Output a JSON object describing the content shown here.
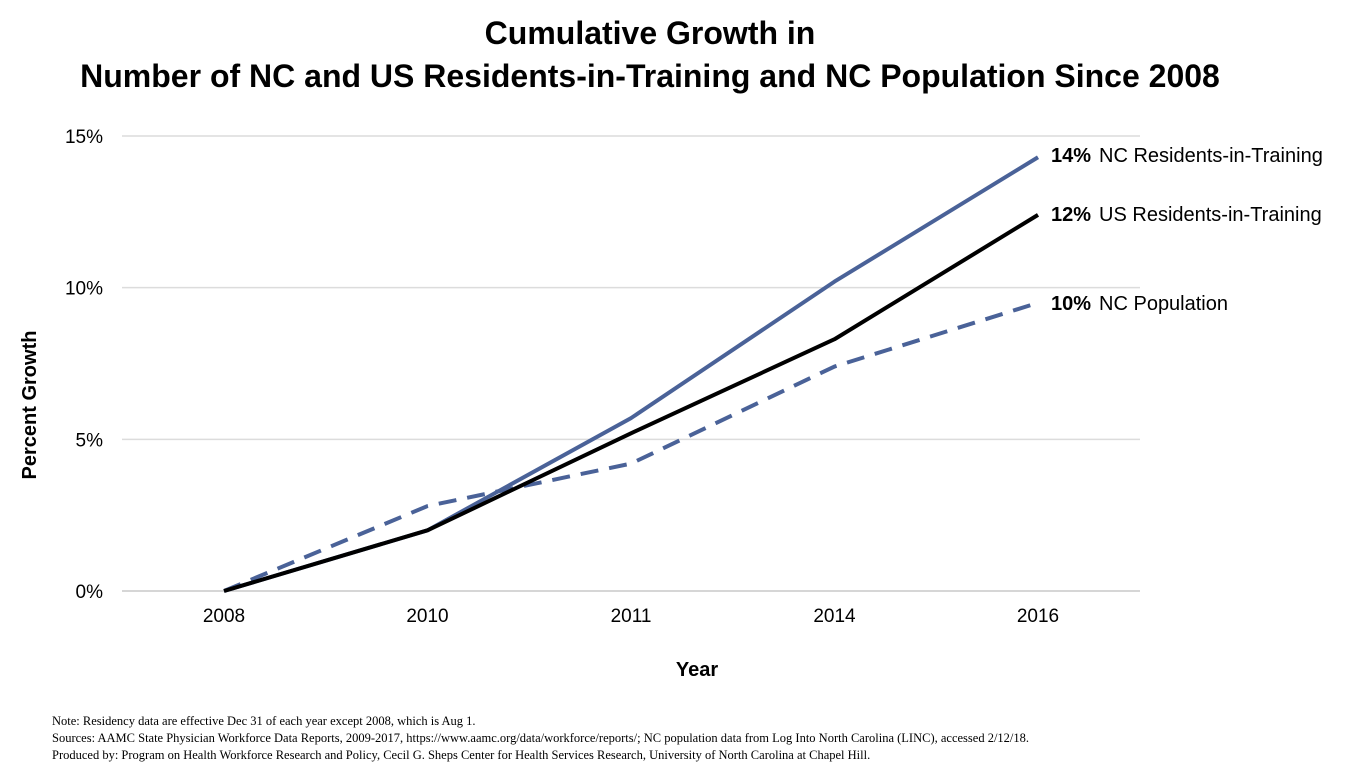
{
  "chart_data": {
    "type": "line",
    "title_line1": "Cumulative Growth in",
    "title_line2": "Number of NC and US Residents-in-Training and NC Population Since 2008",
    "xlabel": "Year",
    "ylabel": "Percent Growth",
    "categories": [
      "2008",
      "2010",
      "2011",
      "2014",
      "2016"
    ],
    "ylim": [
      0,
      15
    ],
    "yticks": [
      {
        "value": 0,
        "label": "0%"
      },
      {
        "value": 5,
        "label": "5%"
      },
      {
        "value": 10,
        "label": "10%"
      },
      {
        "value": 15,
        "label": "15%"
      }
    ],
    "grid": true,
    "series": [
      {
        "name": "NC Residents-in-Training",
        "end_label": "14%",
        "values": [
          0,
          2.0,
          5.7,
          10.2,
          14.3
        ],
        "color": "#4a6298",
        "style": "solid"
      },
      {
        "name": "US Residents-in-Training",
        "end_label": "12%",
        "values": [
          0,
          2.0,
          5.2,
          8.3,
          12.4
        ],
        "color": "#000000",
        "style": "solid"
      },
      {
        "name": "NC Population",
        "end_label": "10%",
        "values": [
          0,
          2.8,
          4.2,
          7.4,
          9.5
        ],
        "color": "#4a6298",
        "style": "dashed"
      }
    ]
  },
  "notes": {
    "line1": "Note: Residency data are effective Dec 31 of each year except 2008, which is Aug 1.",
    "line2": "Sources: AAMC State Physician Workforce Data Reports, 2009-2017, https://www.aamc.org/data/workforce/reports/; NC population data from Log Into North Carolina (LINC), accessed 2/12/18.",
    "line3": "Produced by: Program on Health Workforce Research and Policy, Cecil G. Sheps Center for Health Services Research, University of North Carolina at Chapel Hill."
  }
}
